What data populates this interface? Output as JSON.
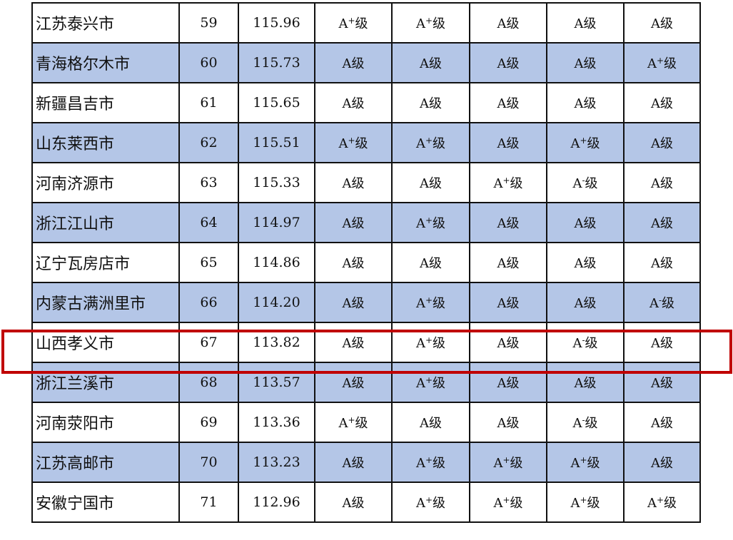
{
  "highlight_color": "#c00000",
  "alt_row_color": "#b4c6e7",
  "highlighted_rank": "67",
  "rows": [
    {
      "city": "江苏泰兴市",
      "rank": "59",
      "score": "115.96",
      "grades": [
        {
          "letter": "A",
          "mod": "+",
          "unit": "级"
        },
        {
          "letter": "A",
          "mod": "+",
          "unit": "级"
        },
        {
          "letter": "A",
          "mod": "",
          "unit": "级"
        },
        {
          "letter": "A",
          "mod": "",
          "unit": "级"
        },
        {
          "letter": "A",
          "mod": "",
          "unit": "级"
        }
      ]
    },
    {
      "city": "青海格尔木市",
      "rank": "60",
      "score": "115.73",
      "grades": [
        {
          "letter": "A",
          "mod": "",
          "unit": "级"
        },
        {
          "letter": "A",
          "mod": "",
          "unit": "级"
        },
        {
          "letter": "A",
          "mod": "",
          "unit": "级"
        },
        {
          "letter": "A",
          "mod": "",
          "unit": "级"
        },
        {
          "letter": "A",
          "mod": "+",
          "unit": "级"
        }
      ]
    },
    {
      "city": "新疆昌吉市",
      "rank": "61",
      "score": "115.65",
      "grades": [
        {
          "letter": "A",
          "mod": "",
          "unit": "级"
        },
        {
          "letter": "A",
          "mod": "",
          "unit": "级"
        },
        {
          "letter": "A",
          "mod": "",
          "unit": "级"
        },
        {
          "letter": "A",
          "mod": "",
          "unit": "级"
        },
        {
          "letter": "A",
          "mod": "",
          "unit": "级"
        }
      ]
    },
    {
      "city": "山东莱西市",
      "rank": "62",
      "score": "115.51",
      "grades": [
        {
          "letter": "A",
          "mod": "+",
          "unit": "级"
        },
        {
          "letter": "A",
          "mod": "+",
          "unit": "级"
        },
        {
          "letter": "A",
          "mod": "",
          "unit": "级"
        },
        {
          "letter": "A",
          "mod": "+",
          "unit": "级"
        },
        {
          "letter": "A",
          "mod": "",
          "unit": "级"
        }
      ]
    },
    {
      "city": "河南济源市",
      "rank": "63",
      "score": "115.33",
      "grades": [
        {
          "letter": "A",
          "mod": "",
          "unit": "级"
        },
        {
          "letter": "A",
          "mod": "",
          "unit": "级"
        },
        {
          "letter": "A",
          "mod": "+",
          "unit": "级"
        },
        {
          "letter": "A",
          "mod": "-",
          "unit": "级"
        },
        {
          "letter": "A",
          "mod": "",
          "unit": "级"
        }
      ]
    },
    {
      "city": "浙江江山市",
      "rank": "64",
      "score": "114.97",
      "grades": [
        {
          "letter": "A",
          "mod": "",
          "unit": "级"
        },
        {
          "letter": "A",
          "mod": "+",
          "unit": "级"
        },
        {
          "letter": "A",
          "mod": "",
          "unit": "级"
        },
        {
          "letter": "A",
          "mod": "",
          "unit": "级"
        },
        {
          "letter": "A",
          "mod": "",
          "unit": "级"
        }
      ]
    },
    {
      "city": "辽宁瓦房店市",
      "rank": "65",
      "score": "114.86",
      "grades": [
        {
          "letter": "A",
          "mod": "",
          "unit": "级"
        },
        {
          "letter": "A",
          "mod": "",
          "unit": "级"
        },
        {
          "letter": "A",
          "mod": "",
          "unit": "级"
        },
        {
          "letter": "A",
          "mod": "",
          "unit": "级"
        },
        {
          "letter": "A",
          "mod": "",
          "unit": "级"
        }
      ]
    },
    {
      "city": "内蒙古满洲里市",
      "rank": "66",
      "score": "114.20",
      "grades": [
        {
          "letter": "A",
          "mod": "",
          "unit": "级"
        },
        {
          "letter": "A",
          "mod": "+",
          "unit": "级"
        },
        {
          "letter": "A",
          "mod": "",
          "unit": "级"
        },
        {
          "letter": "A",
          "mod": "",
          "unit": "级"
        },
        {
          "letter": "A",
          "mod": "-",
          "unit": "级"
        }
      ]
    },
    {
      "city": "山西孝义市",
      "rank": "67",
      "score": "113.82",
      "grades": [
        {
          "letter": "A",
          "mod": "",
          "unit": "级"
        },
        {
          "letter": "A",
          "mod": "+",
          "unit": "级"
        },
        {
          "letter": "A",
          "mod": "",
          "unit": "级"
        },
        {
          "letter": "A",
          "mod": "-",
          "unit": "级"
        },
        {
          "letter": "A",
          "mod": "",
          "unit": "级"
        }
      ]
    },
    {
      "city": "浙江兰溪市",
      "rank": "68",
      "score": "113.57",
      "grades": [
        {
          "letter": "A",
          "mod": "",
          "unit": "级"
        },
        {
          "letter": "A",
          "mod": "+",
          "unit": "级"
        },
        {
          "letter": "A",
          "mod": "",
          "unit": "级"
        },
        {
          "letter": "A",
          "mod": "",
          "unit": "级"
        },
        {
          "letter": "A",
          "mod": "",
          "unit": "级"
        }
      ]
    },
    {
      "city": "河南荥阳市",
      "rank": "69",
      "score": "113.36",
      "grades": [
        {
          "letter": "A",
          "mod": "+",
          "unit": "级"
        },
        {
          "letter": "A",
          "mod": "",
          "unit": "级"
        },
        {
          "letter": "A",
          "mod": "",
          "unit": "级"
        },
        {
          "letter": "A",
          "mod": "-",
          "unit": "级"
        },
        {
          "letter": "A",
          "mod": "",
          "unit": "级"
        }
      ]
    },
    {
      "city": "江苏高邮市",
      "rank": "70",
      "score": "113.23",
      "grades": [
        {
          "letter": "A",
          "mod": "",
          "unit": "级"
        },
        {
          "letter": "A",
          "mod": "+",
          "unit": "级"
        },
        {
          "letter": "A",
          "mod": "+",
          "unit": "级"
        },
        {
          "letter": "A",
          "mod": "+",
          "unit": "级"
        },
        {
          "letter": "A",
          "mod": "",
          "unit": "级"
        }
      ]
    },
    {
      "city": "安徽宁国市",
      "rank": "71",
      "score": "112.96",
      "grades": [
        {
          "letter": "A",
          "mod": "",
          "unit": "级"
        },
        {
          "letter": "A",
          "mod": "+",
          "unit": "级"
        },
        {
          "letter": "A",
          "mod": "+",
          "unit": "级"
        },
        {
          "letter": "A",
          "mod": "+",
          "unit": "级"
        },
        {
          "letter": "A",
          "mod": "+",
          "unit": "级"
        }
      ]
    }
  ]
}
